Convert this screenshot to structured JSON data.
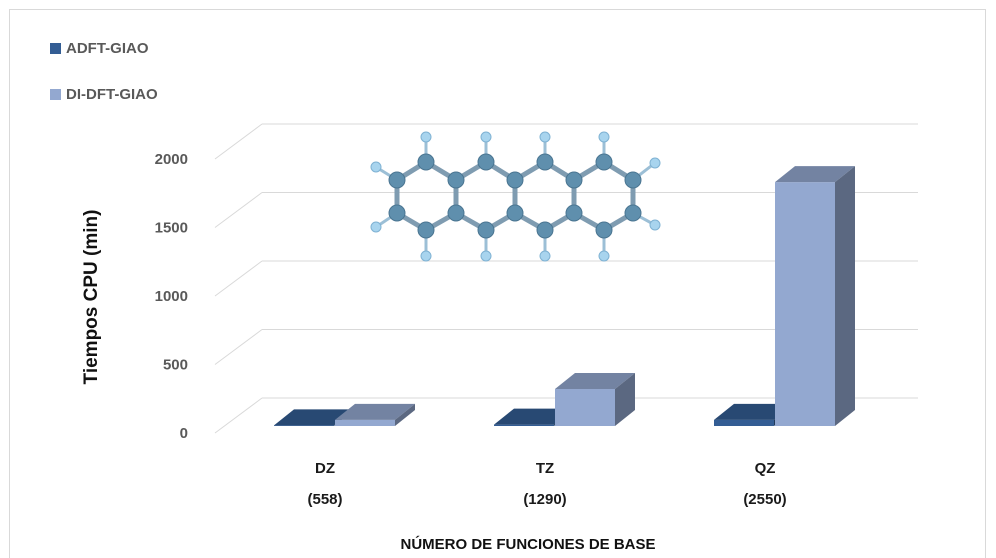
{
  "chart_data": {
    "type": "bar",
    "categories": [
      "DZ\n(558)",
      "TZ\n(1290)",
      "QZ\n(2550)"
    ],
    "category_lines": [
      [
        "DZ",
        "(558)"
      ],
      [
        "TZ",
        "(1290)"
      ],
      [
        "QZ",
        "(2550)"
      ]
    ],
    "series": [
      {
        "name": "ADFT-GIAO",
        "values": [
          5,
          10,
          45
        ],
        "color": "#335d94"
      },
      {
        "name": "DI-DFT-GIAO",
        "values": [
          45,
          270,
          1780
        ],
        "color": "#93a8d0"
      }
    ],
    "xlabel": "NÚMERO DE FUNCIONES DE BASE",
    "ylabel": "Tiempos CPU (min)",
    "yticks": [
      "0",
      "500",
      "1000",
      "1500",
      "2000"
    ],
    "ylim": [
      0,
      2000
    ],
    "grid": true,
    "legend_position": "top-left",
    "style": "3d-column"
  },
  "inset": {
    "icon": "tetracene-molecule-icon",
    "carbon_color": "#5f8fad",
    "hydrogen_color": "#a8d4ee"
  }
}
